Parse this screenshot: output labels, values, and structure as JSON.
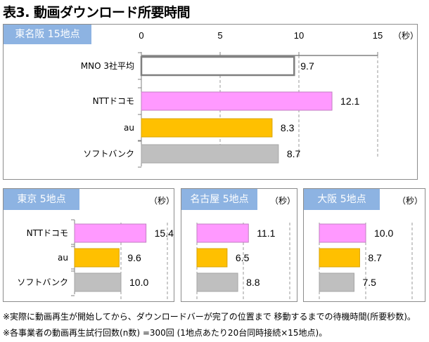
{
  "title": "表3. 動画ダウンロード所要時間",
  "unit_label": "（秒）",
  "colors": {
    "region_label_bg": "#8db3e2",
    "average": "#ffffff",
    "docomo": "#ff99ff",
    "au": "#ffc000",
    "softbank": "#bfbfbf"
  },
  "chart_data": [
    {
      "type": "bar",
      "orientation": "horizontal",
      "title": "東名阪 15地点",
      "categories": [
        "MNO 3社平均",
        "NTTドコモ",
        "au",
        "ソフトバンク"
      ],
      "values": [
        9.7,
        12.1,
        8.3,
        8.7
      ],
      "value_labels": [
        "9.7",
        "12.1",
        "8.3",
        "8.7"
      ],
      "xlim": [
        0,
        15
      ],
      "xticks": [
        "0",
        "5",
        "10",
        "15"
      ],
      "xlabel": "（秒）",
      "grid": "dashed vertical at 5, 10, 15"
    },
    {
      "type": "bar",
      "orientation": "horizontal",
      "title": "東京 5地点",
      "categories": [
        "NTTドコモ",
        "au",
        "ソフトバンク"
      ],
      "values": [
        15.4,
        9.6,
        10.0
      ],
      "value_labels": [
        "15.4",
        "9.6",
        "10.0"
      ],
      "xlim": [
        0,
        20
      ],
      "xlabel": "（秒）",
      "grid": "dashed vertical at 10, 20"
    },
    {
      "type": "bar",
      "orientation": "horizontal",
      "title": "名古屋 5地点",
      "categories": [
        "NTTドコモ",
        "au",
        "ソフトバンク"
      ],
      "values": [
        11.1,
        6.5,
        8.8
      ],
      "value_labels": [
        "11.1",
        "6.5",
        "8.8"
      ],
      "xlim": [
        0,
        20
      ],
      "xlabel": "（秒）",
      "grid": "dashed vertical at 0, 10, 20"
    },
    {
      "type": "bar",
      "orientation": "horizontal",
      "title": "大阪 5地点",
      "categories": [
        "NTTドコモ",
        "au",
        "ソフトバンク"
      ],
      "values": [
        10.0,
        8.7,
        7.5
      ],
      "value_labels": [
        "10.0",
        "8.7",
        "7.5"
      ],
      "xlim": [
        0,
        20
      ],
      "xlabel": "（秒）",
      "grid": "dashed vertical at 0, 10, 20"
    }
  ],
  "notes": [
    "※実際に動画再生が開始してから、ダウンロードバーが完了の位置まで 移動するまでの待機時間(所要秒数)。",
    "※各事業者の動画再生試行回数(n数) =300回 (1地点あたり20台同時接続×15地点)。"
  ]
}
